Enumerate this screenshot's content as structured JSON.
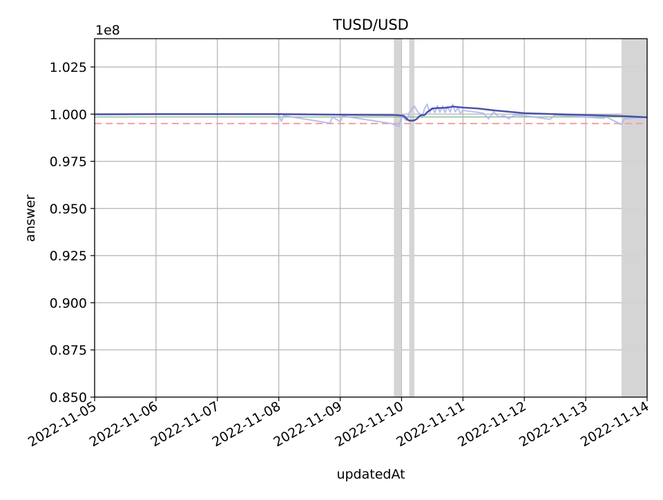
{
  "chart_data": {
    "type": "line",
    "title": "TUSD/USD",
    "xlabel": "updatedAt",
    "ylabel": "answer",
    "y_offset_label": "1e8",
    "ylim": [
      0.85,
      1.04
    ],
    "xlim": [
      "2022-11-05",
      "2022-11-14"
    ],
    "yticks": [
      0.85,
      0.875,
      0.9,
      0.925,
      0.95,
      0.975,
      1.0,
      1.025
    ],
    "ytick_labels": [
      "0.850",
      "0.875",
      "0.900",
      "0.925",
      "0.950",
      "0.975",
      "1.000",
      "1.025"
    ],
    "xticks": [
      "2022-11-05",
      "2022-11-06",
      "2022-11-07",
      "2022-11-08",
      "2022-11-09",
      "2022-11-10",
      "2022-11-11",
      "2022-11-12",
      "2022-11-13",
      "2022-11-14"
    ],
    "grid": true,
    "colors": {
      "raw": "#aab4f0",
      "smoothed": "#3c3fa0",
      "reference": "#8fbf8f",
      "threshold": "#f4a0a0",
      "shaded": "#d3d3d3",
      "grid": "#b0b0b0"
    },
    "threshold_line": {
      "y": 0.995,
      "style": "dashed"
    },
    "reference_line": {
      "y": 0.9985
    },
    "shaded_regions": [
      {
        "x0": "2022-11-09 21:00",
        "x1": "2022-11-10 00:00"
      },
      {
        "x0": "2022-11-10 03:00",
        "x1": "2022-11-10 05:00"
      },
      {
        "x0": "2022-11-13 14:00",
        "x1": "2022-11-14 00:00"
      }
    ],
    "series": [
      {
        "role": "raw",
        "x": [
          "2022-11-05 00:00",
          "2022-11-06 00:00",
          "2022-11-07 00:00",
          "2022-11-07 23:00",
          "2022-11-08 00:00",
          "2022-11-08 01:00",
          "2022-11-08 02:00",
          "2022-11-08 20:00",
          "2022-11-08 21:00",
          "2022-11-09 00:00",
          "2022-11-09 01:00",
          "2022-11-09 20:00",
          "2022-11-09 23:00",
          "2022-11-10 00:00",
          "2022-11-10 01:00",
          "2022-11-10 02:00",
          "2022-11-10 03:00",
          "2022-11-10 04:00",
          "2022-11-10 05:00",
          "2022-11-10 06:00",
          "2022-11-10 07:00",
          "2022-11-10 08:00",
          "2022-11-10 09:00",
          "2022-11-10 10:00",
          "2022-11-10 11:00",
          "2022-11-10 12:00",
          "2022-11-10 13:00",
          "2022-11-10 14:00",
          "2022-11-10 15:00",
          "2022-11-10 16:00",
          "2022-11-10 17:00",
          "2022-11-10 18:00",
          "2022-11-10 19:00",
          "2022-11-10 20:00",
          "2022-11-10 21:00",
          "2022-11-10 22:00",
          "2022-11-10 23:00",
          "2022-11-11 00:00",
          "2022-11-11 08:00",
          "2022-11-11 10:00",
          "2022-11-11 12:00",
          "2022-11-11 14:00",
          "2022-11-11 16:00",
          "2022-11-11 18:00",
          "2022-11-11 20:00",
          "2022-11-12 00:00",
          "2022-11-12 10:00",
          "2022-11-12 12:00",
          "2022-11-13 07:00",
          "2022-11-13 08:00",
          "2022-11-13 14:00",
          "2022-11-13 15:00",
          "2022-11-14 00:00"
        ],
        "y": [
          0.9998,
          0.9999,
          0.9999,
          0.9999,
          0.9995,
          0.9962,
          0.9992,
          0.9952,
          0.9985,
          0.996,
          0.999,
          0.995,
          0.9935,
          0.9985,
          0.9978,
          0.9965,
          1.0008,
          1.0025,
          1.0043,
          1.0018,
          1.0002,
          0.9982,
          1.003,
          1.0053,
          1.0008,
          1.0034,
          1.0008,
          1.0045,
          1.001,
          1.0043,
          1.0008,
          1.0041,
          1.001,
          1.0052,
          1.0012,
          1.0033,
          1.0005,
          1.002,
          1.0005,
          0.9975,
          1.0013,
          0.9985,
          0.9992,
          0.9975,
          0.9995,
          0.9992,
          0.9972,
          0.9995,
          0.9978,
          0.9985,
          0.9945,
          0.9975,
          0.9985
        ]
      },
      {
        "role": "smoothed",
        "x": [
          "2022-11-05 00:00",
          "2022-11-06 00:00",
          "2022-11-07 00:00",
          "2022-11-08 00:00",
          "2022-11-09 00:00",
          "2022-11-09 22:00",
          "2022-11-10 00:00",
          "2022-11-10 01:00",
          "2022-11-10 02:00",
          "2022-11-10 03:00",
          "2022-11-10 04:00",
          "2022-11-10 05:00",
          "2022-11-10 06:00",
          "2022-11-10 07:00",
          "2022-11-10 08:00",
          "2022-11-10 09:00",
          "2022-11-10 10:00",
          "2022-11-10 11:00",
          "2022-11-10 12:00",
          "2022-11-10 14:00",
          "2022-11-10 16:00",
          "2022-11-10 18:00",
          "2022-11-10 20:00",
          "2022-11-11 00:00",
          "2022-11-11 06:00",
          "2022-11-11 12:00",
          "2022-11-12 00:00",
          "2022-11-13 00:00",
          "2022-11-13 14:00",
          "2022-11-14 00:00"
        ],
        "y": [
          0.9999,
          1.0,
          1.0,
          1.0,
          0.9997,
          0.9995,
          0.9993,
          0.999,
          0.9975,
          0.9965,
          0.9965,
          0.9967,
          0.9975,
          0.999,
          0.9995,
          0.9995,
          1.001,
          1.002,
          1.003,
          1.0032,
          1.0033,
          1.0035,
          1.004,
          1.0035,
          1.003,
          1.002,
          1.0005,
          0.9995,
          0.999,
          0.9983
        ]
      }
    ]
  }
}
